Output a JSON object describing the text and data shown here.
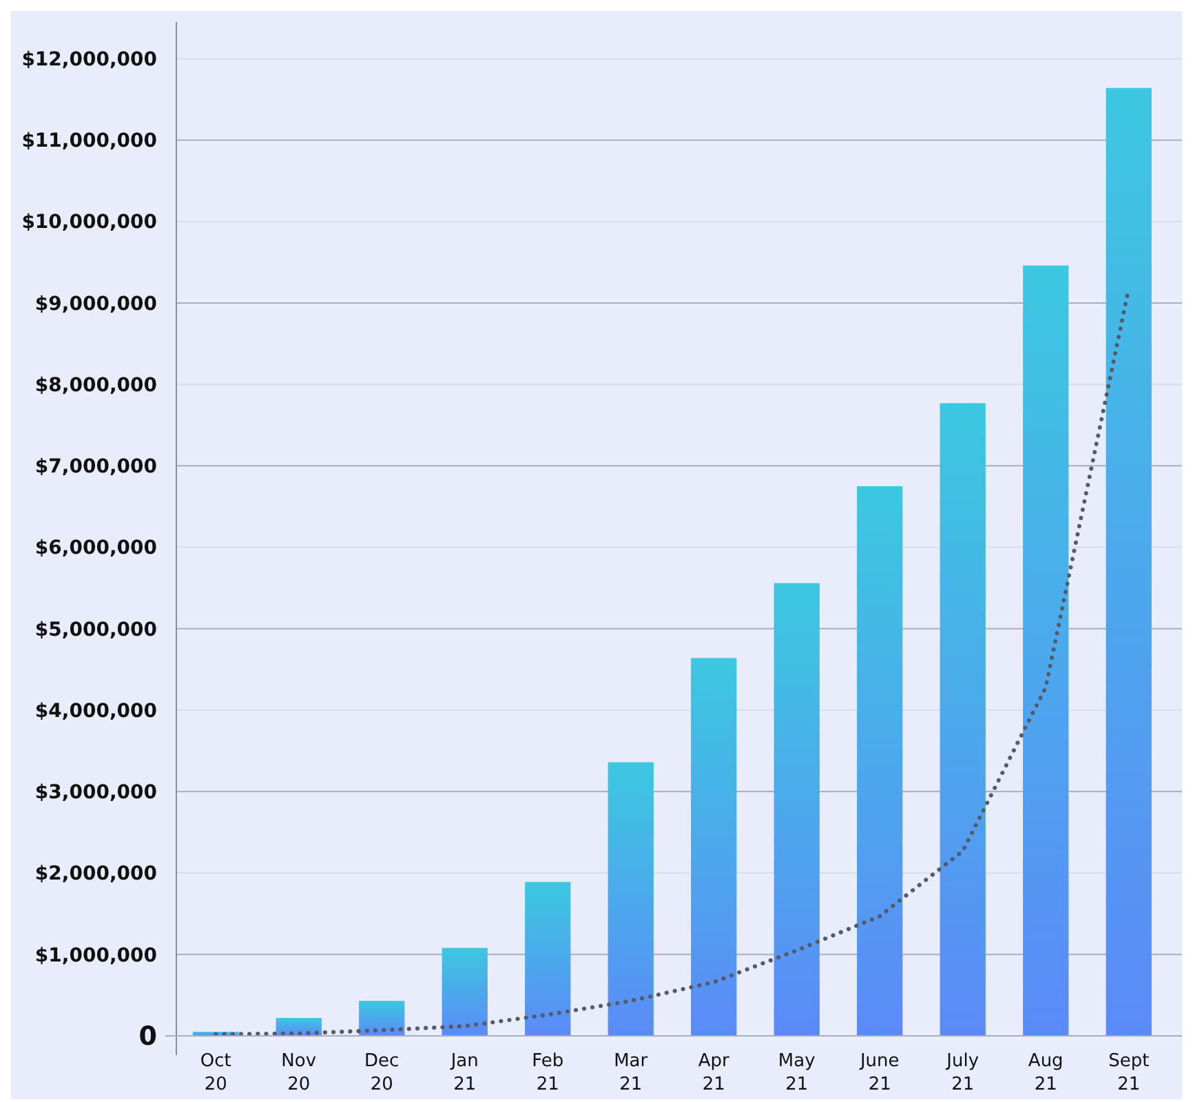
{
  "chart_data": {
    "type": "bar",
    "categories": [
      "Oct 20",
      "Nov 20",
      "Dec 20",
      "Jan 21",
      "Feb 21",
      "Mar 21",
      "Apr 21",
      "May 21",
      "June 21",
      "July 21",
      "Aug 21",
      "Sept 21"
    ],
    "series": [
      {
        "color": "#3cc8e0",
        "values": [
          50000,
          220000,
          430000,
          1080000,
          1890000,
          3360000,
          4640000,
          5560000,
          6750000,
          7770000,
          9460000,
          11640000
        ]
      },
      {
        "type": "line",
        "color": "#555a66",
        "line_style": "dotted",
        "marker": "none",
        "values": [
          20000,
          30000,
          70000,
          120000,
          260000,
          430000,
          660000,
          1050000,
          1470000,
          2270000,
          4280000,
          9180000
        ]
      }
    ],
    "ylim": [
      0,
      12450000
    ],
    "yticks": [
      {
        "value": 0,
        "label": "0"
      },
      {
        "value": 1000000,
        "label": "$1,000,000"
      },
      {
        "value": 2000000,
        "label": "$2,000,000"
      },
      {
        "value": 3000000,
        "label": "$3,000,000"
      },
      {
        "value": 4000000,
        "label": "$4,000,000"
      },
      {
        "value": 5000000,
        "label": "$5,000,000"
      },
      {
        "value": 6000000,
        "label": "$6,000,000"
      },
      {
        "value": 7000000,
        "label": "$7,000,000"
      },
      {
        "value": 8000000,
        "label": "$8,000,000"
      },
      {
        "value": 9000000,
        "label": "$9,000,000"
      },
      {
        "value": 10000000,
        "label": "$10,000,000"
      },
      {
        "value": 11000000,
        "label": "$11,000,000"
      },
      {
        "value": 12000000,
        "label": "$12,000,000"
      }
    ],
    "grid": "y"
  }
}
